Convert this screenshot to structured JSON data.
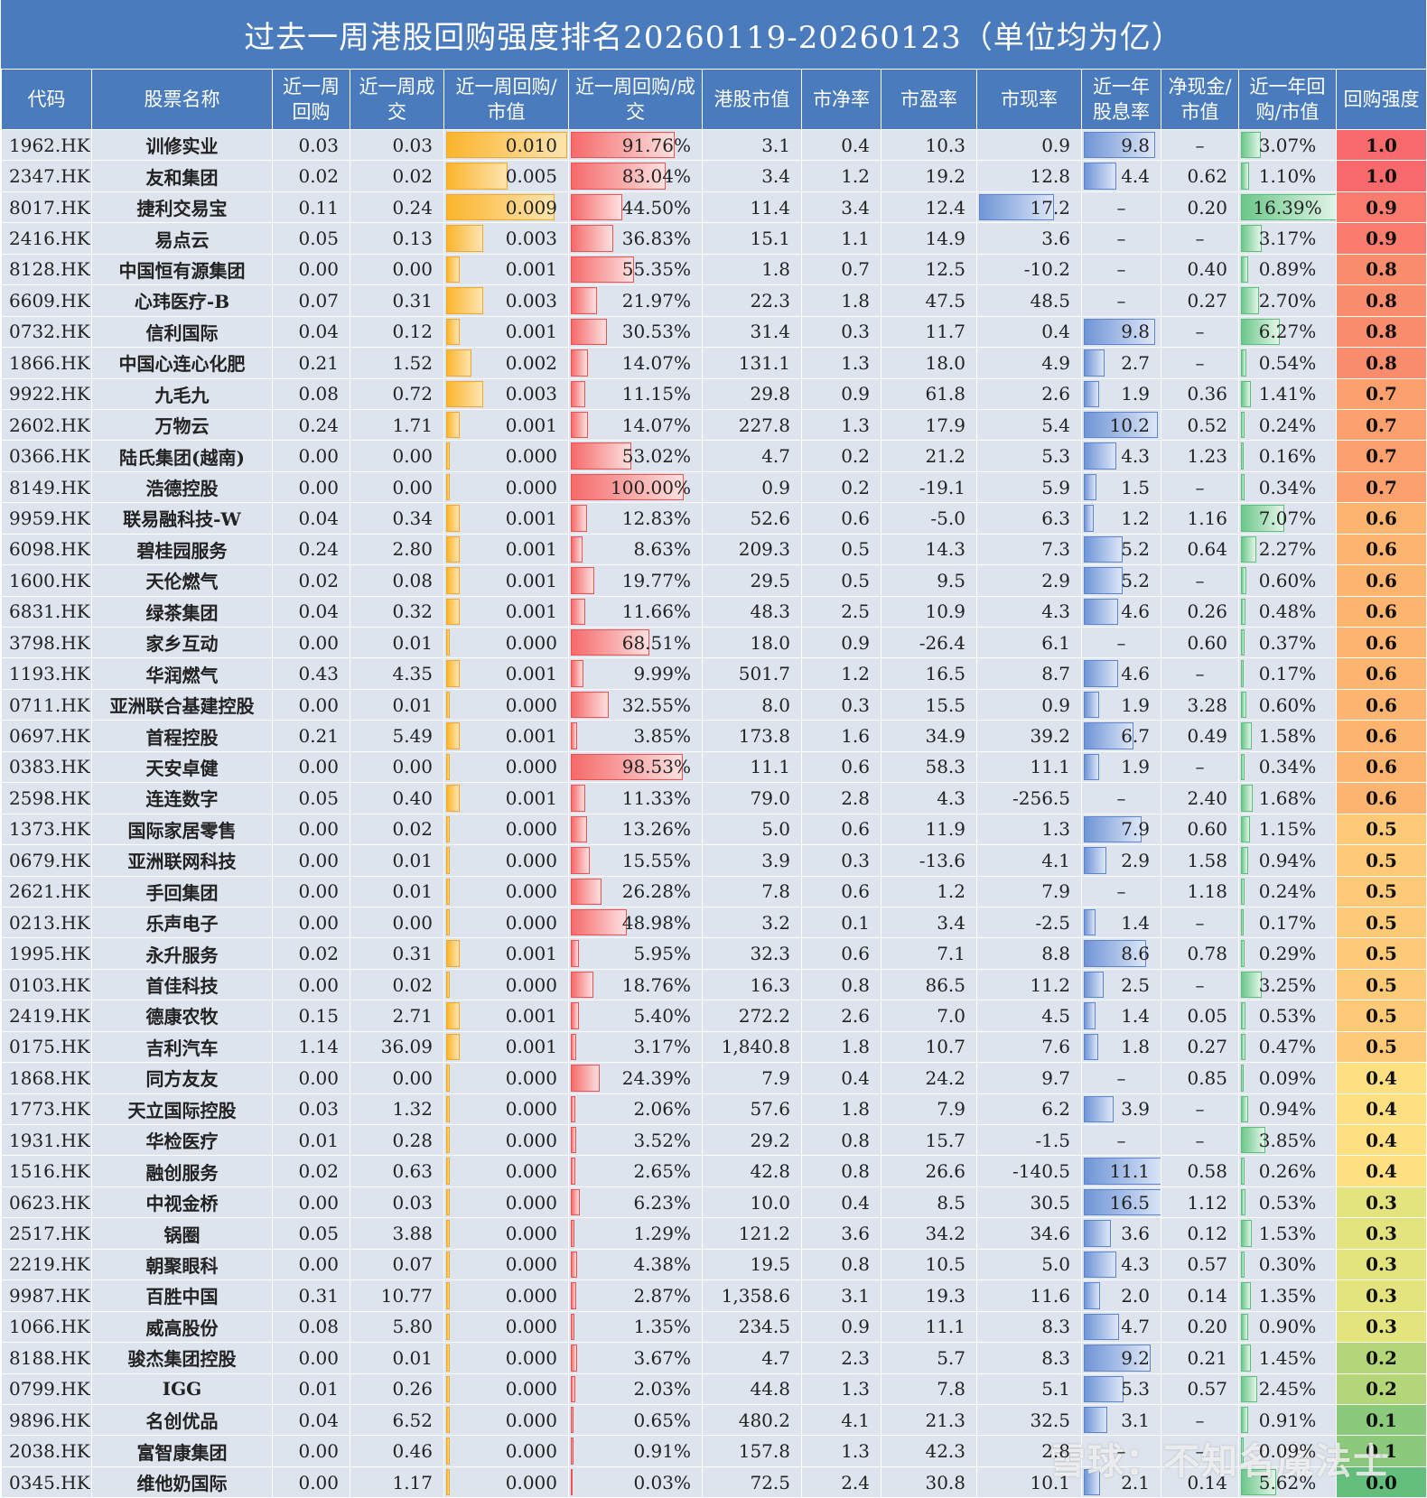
{
  "title": "过去一周港股回购强度排名20260119-20260123（单位均为亿）",
  "watermark": "雪球：不知名魔法士",
  "headers": [
    "代码",
    "股票名称",
    "近一周回购",
    "近一周成交",
    "近一周回购/市值",
    "近一周回购/成交",
    "港股市值",
    "市净率",
    "市盈率",
    "市现率",
    "近一年股息率",
    "净现金/市值",
    "近一年回购/市值",
    "回购强度"
  ],
  "colors": {
    "header_bg": "#4a7cbd",
    "row_bg": "#dde4ee",
    "bar_orange": "#fbb52d",
    "bar_red": "#f56a6a",
    "bar_blue": "#6f95d6",
    "bar_green": "#6cc78a"
  },
  "rows": [
    [
      "1962.HK",
      "训修实业",
      "0.03",
      "0.03",
      "0.010",
      "91.76%",
      "3.1",
      "0.4",
      "10.3",
      "0.9",
      "9.8",
      "–",
      "3.07%",
      "1.0"
    ],
    [
      "2347.HK",
      "友和集团",
      "0.02",
      "0.02",
      "0.005",
      "83.04%",
      "3.4",
      "1.2",
      "19.2",
      "12.8",
      "4.4",
      "0.62",
      "1.10%",
      "1.0"
    ],
    [
      "8017.HK",
      "捷利交易宝",
      "0.11",
      "0.24",
      "0.009",
      "44.50%",
      "11.4",
      "3.4",
      "12.4",
      "17.2",
      "–",
      "0.20",
      "16.39%",
      "0.9"
    ],
    [
      "2416.HK",
      "易点云",
      "0.05",
      "0.13",
      "0.003",
      "36.83%",
      "15.1",
      "1.1",
      "14.9",
      "3.6",
      "–",
      "–",
      "3.17%",
      "0.9"
    ],
    [
      "8128.HK",
      "中国恒有源集团",
      "0.00",
      "0.00",
      "0.001",
      "55.35%",
      "1.8",
      "0.7",
      "12.5",
      "-10.2",
      "–",
      "0.40",
      "0.89%",
      "0.8"
    ],
    [
      "6609.HK",
      "心玮医疗-B",
      "0.07",
      "0.31",
      "0.003",
      "21.97%",
      "22.3",
      "1.8",
      "47.5",
      "48.5",
      "–",
      "0.27",
      "2.70%",
      "0.8"
    ],
    [
      "0732.HK",
      "信利国际",
      "0.04",
      "0.12",
      "0.001",
      "30.53%",
      "31.4",
      "0.3",
      "11.7",
      "0.4",
      "9.8",
      "–",
      "6.27%",
      "0.8"
    ],
    [
      "1866.HK",
      "中国心连心化肥",
      "0.21",
      "1.52",
      "0.002",
      "14.07%",
      "131.1",
      "1.3",
      "18.0",
      "4.9",
      "2.7",
      "–",
      "0.54%",
      "0.8"
    ],
    [
      "9922.HK",
      "九毛九",
      "0.08",
      "0.72",
      "0.003",
      "11.15%",
      "29.8",
      "0.9",
      "61.8",
      "2.6",
      "1.9",
      "0.36",
      "1.41%",
      "0.7"
    ],
    [
      "2602.HK",
      "万物云",
      "0.24",
      "1.71",
      "0.001",
      "14.07%",
      "227.8",
      "1.3",
      "17.9",
      "5.4",
      "10.2",
      "0.52",
      "0.24%",
      "0.7"
    ],
    [
      "0366.HK",
      "陆氏集团(越南)",
      "0.00",
      "0.00",
      "0.000",
      "53.02%",
      "4.7",
      "0.2",
      "21.2",
      "5.3",
      "4.3",
      "1.23",
      "0.16%",
      "0.7"
    ],
    [
      "8149.HK",
      "浩德控股",
      "0.00",
      "0.00",
      "0.000",
      "100.00%",
      "0.9",
      "0.2",
      "-19.1",
      "5.9",
      "1.5",
      "–",
      "0.34%",
      "0.7"
    ],
    [
      "9959.HK",
      "联易融科技-W",
      "0.04",
      "0.34",
      "0.001",
      "12.83%",
      "52.6",
      "0.6",
      "-5.0",
      "6.3",
      "1.2",
      "1.16",
      "7.07%",
      "0.6"
    ],
    [
      "6098.HK",
      "碧桂园服务",
      "0.24",
      "2.80",
      "0.001",
      "8.63%",
      "209.3",
      "0.5",
      "14.3",
      "7.3",
      "5.2",
      "0.64",
      "2.27%",
      "0.6"
    ],
    [
      "1600.HK",
      "天伦燃气",
      "0.02",
      "0.08",
      "0.001",
      "19.77%",
      "29.5",
      "0.5",
      "9.5",
      "2.9",
      "5.2",
      "–",
      "0.60%",
      "0.6"
    ],
    [
      "6831.HK",
      "绿茶集团",
      "0.04",
      "0.32",
      "0.001",
      "11.66%",
      "48.3",
      "2.5",
      "10.9",
      "4.3",
      "4.6",
      "0.26",
      "0.48%",
      "0.6"
    ],
    [
      "3798.HK",
      "家乡互动",
      "0.00",
      "0.01",
      "0.000",
      "68.51%",
      "18.0",
      "0.9",
      "-26.4",
      "6.1",
      "–",
      "0.60",
      "0.37%",
      "0.6"
    ],
    [
      "1193.HK",
      "华润燃气",
      "0.43",
      "4.35",
      "0.001",
      "9.99%",
      "501.7",
      "1.2",
      "16.5",
      "8.7",
      "4.6",
      "–",
      "0.17%",
      "0.6"
    ],
    [
      "0711.HK",
      "亚洲联合基建控股",
      "0.00",
      "0.01",
      "0.000",
      "32.55%",
      "8.0",
      "0.3",
      "15.5",
      "0.9",
      "1.9",
      "3.28",
      "0.60%",
      "0.6"
    ],
    [
      "0697.HK",
      "首程控股",
      "0.21",
      "5.49",
      "0.001",
      "3.85%",
      "173.8",
      "1.6",
      "34.9",
      "39.2",
      "6.7",
      "0.49",
      "1.58%",
      "0.6"
    ],
    [
      "0383.HK",
      "天安卓健",
      "0.00",
      "0.00",
      "0.000",
      "98.53%",
      "11.1",
      "0.6",
      "58.3",
      "11.1",
      "1.9",
      "–",
      "0.34%",
      "0.6"
    ],
    [
      "2598.HK",
      "连连数字",
      "0.05",
      "0.40",
      "0.001",
      "11.33%",
      "79.0",
      "2.8",
      "4.3",
      "-256.5",
      "–",
      "2.40",
      "1.68%",
      "0.6"
    ],
    [
      "1373.HK",
      "国际家居零售",
      "0.00",
      "0.02",
      "0.000",
      "13.26%",
      "5.0",
      "0.6",
      "11.9",
      "1.3",
      "7.9",
      "0.60",
      "1.15%",
      "0.5"
    ],
    [
      "0679.HK",
      "亚洲联网科技",
      "0.00",
      "0.01",
      "0.000",
      "15.55%",
      "3.9",
      "0.3",
      "-13.6",
      "4.1",
      "2.9",
      "1.58",
      "0.94%",
      "0.5"
    ],
    [
      "2621.HK",
      "手回集团",
      "0.00",
      "0.01",
      "0.000",
      "26.28%",
      "7.8",
      "0.6",
      "1.2",
      "7.9",
      "–",
      "1.18",
      "0.24%",
      "0.5"
    ],
    [
      "0213.HK",
      "乐声电子",
      "0.00",
      "0.00",
      "0.000",
      "48.98%",
      "3.2",
      "0.1",
      "3.4",
      "-2.5",
      "1.4",
      "–",
      "0.17%",
      "0.5"
    ],
    [
      "1995.HK",
      "永升服务",
      "0.02",
      "0.31",
      "0.001",
      "5.95%",
      "32.3",
      "0.6",
      "7.1",
      "8.8",
      "8.6",
      "0.78",
      "0.29%",
      "0.5"
    ],
    [
      "0103.HK",
      "首佳科技",
      "0.00",
      "0.02",
      "0.000",
      "18.76%",
      "16.3",
      "0.8",
      "86.5",
      "11.2",
      "2.5",
      "–",
      "3.25%",
      "0.5"
    ],
    [
      "2419.HK",
      "德康农牧",
      "0.15",
      "2.71",
      "0.001",
      "5.40%",
      "272.2",
      "2.6",
      "7.0",
      "4.5",
      "1.4",
      "0.05",
      "0.53%",
      "0.5"
    ],
    [
      "0175.HK",
      "吉利汽车",
      "1.14",
      "36.09",
      "0.001",
      "3.17%",
      "1,840.8",
      "1.8",
      "10.7",
      "7.6",
      "1.8",
      "0.27",
      "0.47%",
      "0.5"
    ],
    [
      "1868.HK",
      "同方友友",
      "0.00",
      "0.00",
      "0.000",
      "24.39%",
      "7.9",
      "0.4",
      "24.2",
      "9.7",
      "–",
      "0.85",
      "0.09%",
      "0.4"
    ],
    [
      "1773.HK",
      "天立国际控股",
      "0.03",
      "1.32",
      "0.000",
      "2.06%",
      "57.6",
      "1.8",
      "7.9",
      "6.2",
      "3.9",
      "–",
      "0.94%",
      "0.4"
    ],
    [
      "1931.HK",
      "华检医疗",
      "0.01",
      "0.28",
      "0.000",
      "3.52%",
      "29.2",
      "0.8",
      "15.7",
      "-1.5",
      "–",
      "–",
      "3.85%",
      "0.4"
    ],
    [
      "1516.HK",
      "融创服务",
      "0.02",
      "0.63",
      "0.000",
      "2.65%",
      "42.8",
      "0.8",
      "26.6",
      "-140.5",
      "11.1",
      "0.58",
      "0.26%",
      "0.4"
    ],
    [
      "0623.HK",
      "中视金桥",
      "0.00",
      "0.03",
      "0.000",
      "6.23%",
      "10.0",
      "0.4",
      "8.5",
      "30.5",
      "16.5",
      "1.12",
      "0.53%",
      "0.3"
    ],
    [
      "2517.HK",
      "锅圈",
      "0.05",
      "3.88",
      "0.000",
      "1.29%",
      "121.2",
      "3.6",
      "34.2",
      "34.6",
      "3.6",
      "0.12",
      "1.53%",
      "0.3"
    ],
    [
      "2219.HK",
      "朝聚眼科",
      "0.00",
      "0.07",
      "0.000",
      "4.38%",
      "19.5",
      "0.8",
      "10.5",
      "5.0",
      "4.3",
      "0.57",
      "0.30%",
      "0.3"
    ],
    [
      "9987.HK",
      "百胜中国",
      "0.31",
      "10.77",
      "0.000",
      "2.87%",
      "1,358.6",
      "3.1",
      "19.3",
      "11.6",
      "2.0",
      "0.14",
      "1.35%",
      "0.3"
    ],
    [
      "1066.HK",
      "威高股份",
      "0.08",
      "5.80",
      "0.000",
      "1.35%",
      "234.5",
      "0.9",
      "11.1",
      "8.3",
      "4.7",
      "0.20",
      "0.90%",
      "0.3"
    ],
    [
      "8188.HK",
      "骏杰集团控股",
      "0.00",
      "0.01",
      "0.000",
      "3.67%",
      "4.7",
      "2.3",
      "5.7",
      "8.3",
      "9.2",
      "0.21",
      "1.45%",
      "0.2"
    ],
    [
      "0799.HK",
      "IGG",
      "0.01",
      "0.26",
      "0.000",
      "2.03%",
      "44.8",
      "1.3",
      "7.8",
      "5.1",
      "5.3",
      "0.57",
      "2.45%",
      "0.2"
    ],
    [
      "9896.HK",
      "名创优品",
      "0.04",
      "6.52",
      "0.000",
      "0.65%",
      "480.2",
      "4.1",
      "21.3",
      "32.5",
      "3.1",
      "–",
      "0.91%",
      "0.1"
    ],
    [
      "2038.HK",
      "富智康集团",
      "0.00",
      "0.46",
      "0.000",
      "0.91%",
      "157.8",
      "1.3",
      "42.3",
      "2.8",
      "–",
      "–",
      "0.09%",
      "0.1"
    ],
    [
      "0345.HK",
      "维他奶国际",
      "0.00",
      "1.17",
      "0.000",
      "0.03%",
      "72.5",
      "2.4",
      "30.8",
      "10.1",
      "2.1",
      "0.14",
      "5.62%",
      "0.0"
    ]
  ],
  "databars": {
    "weekly_cap_ratio": [
      0.1,
      0.05,
      0.09,
      0.03,
      0.01,
      0.03,
      0.01,
      0.02,
      0.03,
      0.01,
      0.0,
      0.0,
      0.01,
      0.01,
      0.01,
      0.01,
      0.0,
      0.01,
      0.0,
      0.01,
      0.0,
      0.01,
      0.0,
      0.0,
      0.0,
      0.0,
      0.01,
      0.0,
      0.01,
      0.01,
      0.0,
      0.0,
      0.0,
      0.0,
      0.0,
      0.0,
      0.0,
      0.0,
      0.0,
      0.0,
      0.0,
      0.0,
      0.0,
      0.0
    ],
    "heat_scale_max": 1.0
  }
}
